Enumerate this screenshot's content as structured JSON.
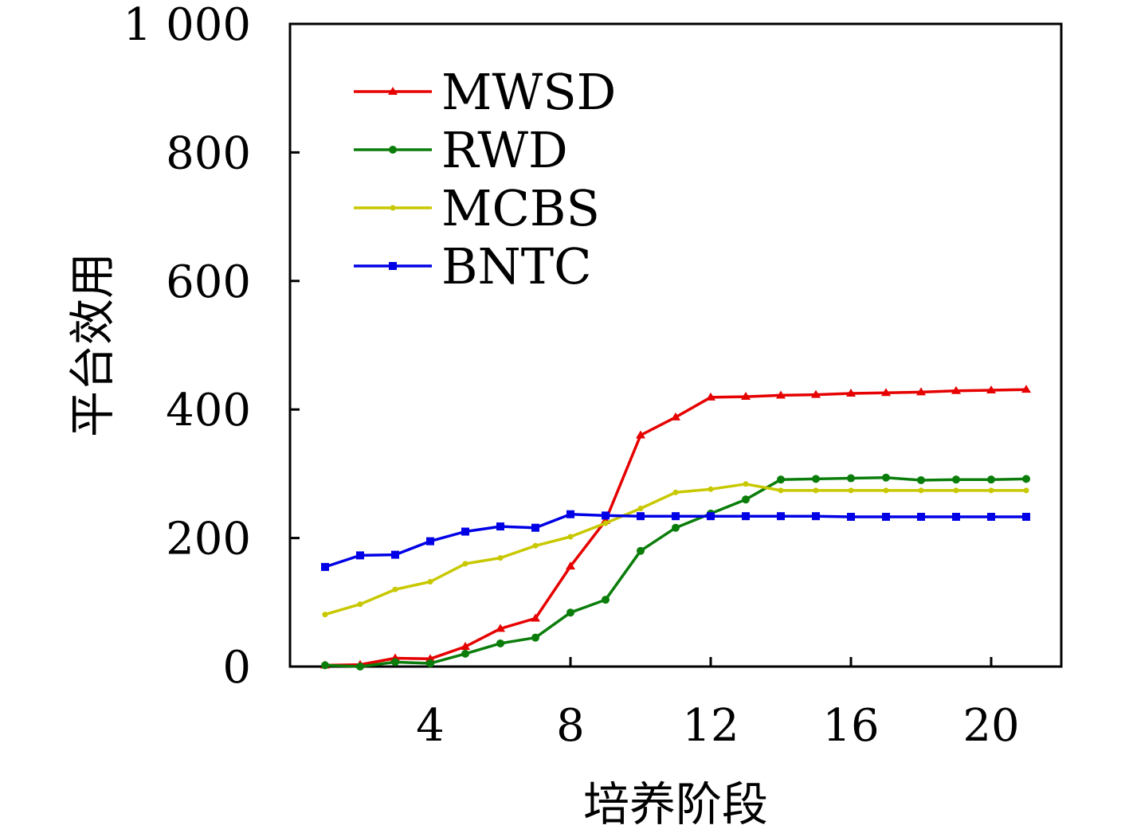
{
  "chart_data": {
    "type": "line",
    "title": "",
    "xlabel": "培养阶段",
    "ylabel": "平台效用",
    "xlim": [
      0,
      22
    ],
    "ylim": [
      0,
      1000
    ],
    "xticks": [
      4,
      8,
      12,
      16,
      20
    ],
    "xtick_labels": [
      "4",
      "8",
      "12",
      "16",
      "20"
    ],
    "yticks": [
      0,
      200,
      400,
      600,
      800,
      1000
    ],
    "ytick_labels": [
      "0",
      "200",
      "400",
      "600",
      "800",
      "1 000"
    ],
    "grid": false,
    "legend": "top-left",
    "x": [
      1,
      2,
      3,
      4,
      5,
      6,
      7,
      8,
      9,
      10,
      11,
      12,
      13,
      14,
      15,
      16,
      17,
      18,
      19,
      20,
      21
    ],
    "series": [
      {
        "name": "MWSD",
        "color": "#e60000",
        "marker": "triangle",
        "values": [
          2,
          3,
          13,
          12,
          31,
          59,
          75,
          156,
          227,
          360,
          388,
          419,
          420,
          422,
          423,
          425,
          426,
          427,
          429,
          430,
          431
        ]
      },
      {
        "name": "RWD",
        "color": "#0a7d0a",
        "marker": "circle",
        "values": [
          2,
          0,
          7,
          5,
          20,
          36,
          45,
          84,
          104,
          180,
          216,
          238,
          260,
          291,
          292,
          293,
          294,
          290,
          291,
          291,
          292
        ]
      },
      {
        "name": "MCBS",
        "color": "#c8c800",
        "marker": "dot",
        "values": [
          81,
          97,
          120,
          132,
          160,
          169,
          188,
          202,
          223,
          246,
          271,
          276,
          284,
          274,
          274,
          274,
          274,
          274,
          274,
          274,
          274
        ]
      },
      {
        "name": "BNTC",
        "color": "#0000e6",
        "marker": "square",
        "values": [
          155,
          173,
          174,
          195,
          210,
          218,
          216,
          237,
          235,
          234,
          234,
          234,
          234,
          234,
          234,
          233,
          233,
          233,
          233,
          233,
          233
        ]
      }
    ]
  }
}
